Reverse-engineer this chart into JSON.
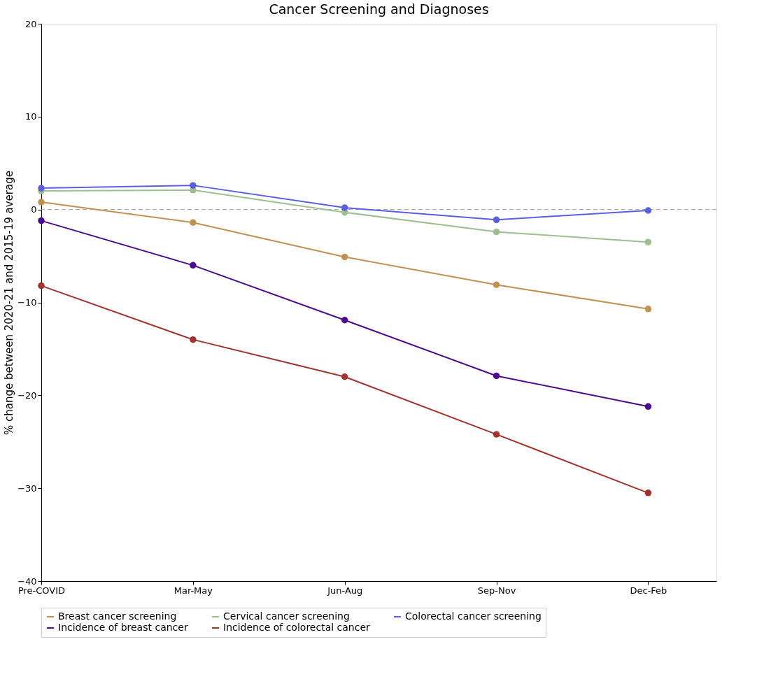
{
  "chart_data": {
    "type": "line",
    "title": "Cancer Screening and Diagnoses",
    "ylabel": "% change between 2020-21 and 2015-19 average",
    "categories": [
      "Pre-COVID",
      "Mar-May",
      "Jun-Aug",
      "Sep-Nov",
      "Dec-Feb"
    ],
    "series": [
      {
        "name": "Breast cancer screening",
        "color": "#c19152",
        "values": [
          0.8,
          -1.4,
          -5.1,
          -8.1,
          -10.7
        ]
      },
      {
        "name": "Cervical cancer screening",
        "color": "#9dbf8f",
        "values": [
          2.0,
          2.1,
          -0.3,
          -2.4,
          -3.5
        ]
      },
      {
        "name": "Colorectal cancer screening",
        "color": "#5a5fe0",
        "values": [
          2.3,
          2.6,
          0.2,
          -1.1,
          -0.1
        ]
      },
      {
        "name": "Incidence of breast cancer",
        "color": "#4b0a8f",
        "values": [
          -1.2,
          -6.0,
          -11.9,
          -17.9,
          -21.2
        ]
      },
      {
        "name": "Incidence of colorectal cancer",
        "color": "#a3322e",
        "values": [
          -8.2,
          -14.0,
          -18.0,
          -24.2,
          -30.5
        ]
      }
    ],
    "ylim": [
      -40,
      20
    ],
    "yticks": [
      -40,
      -30,
      -20,
      -10,
      0,
      10,
      20
    ],
    "ref_lines": [
      {
        "axis": "y",
        "value": 0,
        "color": "#808080",
        "line_style": "dashed"
      }
    ],
    "grid": false,
    "legend": "bottom",
    "marker": "circle",
    "line_style": "solid"
  }
}
